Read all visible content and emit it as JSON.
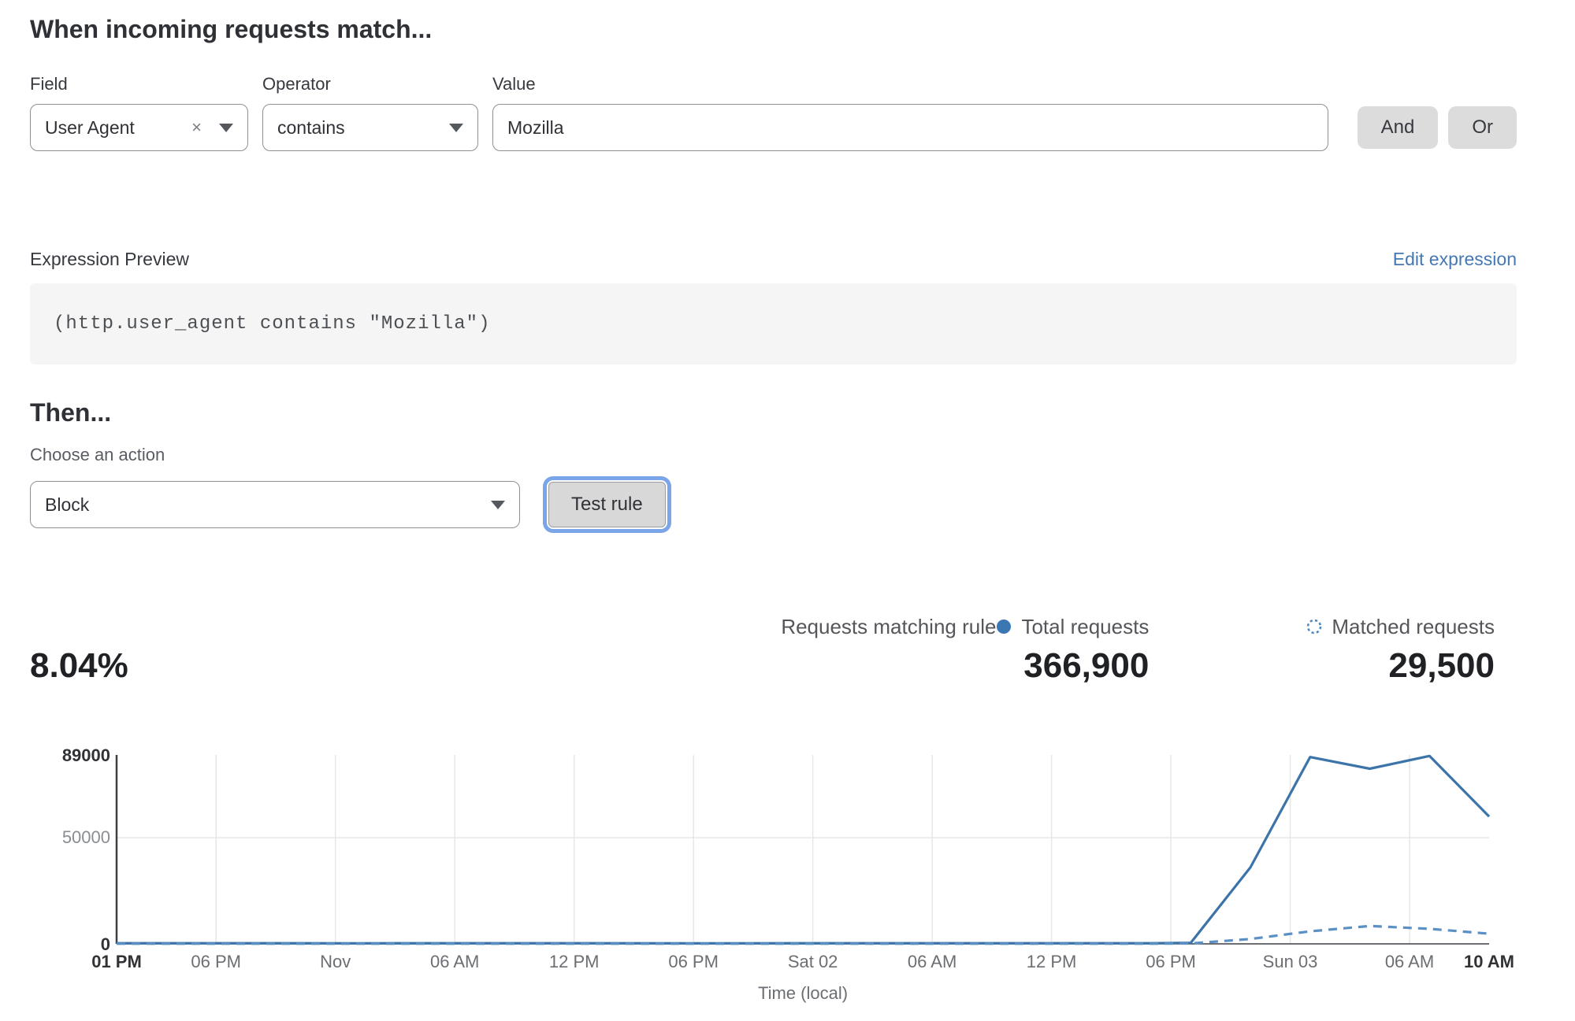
{
  "match_section": {
    "title": "When incoming requests match...",
    "field": {
      "label": "Field",
      "value": "User Agent",
      "clear_icon": "×"
    },
    "operator": {
      "label": "Operator",
      "value": "contains"
    },
    "value": {
      "label": "Value",
      "value": "Mozilla"
    },
    "and_button": "And",
    "or_button": "Or"
  },
  "expression": {
    "label": "Expression Preview",
    "edit_link": "Edit expression",
    "code": "(http.user_agent contains \"Mozilla\")"
  },
  "then_section": {
    "title": "Then...",
    "action_label": "Choose an action",
    "action_value": "Block",
    "test_button": "Test rule"
  },
  "stats": {
    "matching": {
      "label": "Requests matching rule",
      "value": "8.04%"
    },
    "total": {
      "label": "Total requests",
      "value": "366,900"
    },
    "matched": {
      "label": "Matched requests",
      "value": "29,500"
    }
  },
  "colors": {
    "total_line": "#3c74a9",
    "matched_line": "#5b90c4",
    "legend_dot": "#3a77b3",
    "legend_dashed_circle": "#4f8ac2",
    "link_blue": "#4478b4",
    "focus_ring": "#7aa5e9",
    "button_gray": "#dcdcdc",
    "grid": "#e7e7e7",
    "axis": "#3d3f42"
  },
  "chart_data": {
    "type": "line",
    "title": "",
    "xlabel": "Time (local)",
    "ylabel": "",
    "x_unit": "hours from first tick (01 PM Fri) to last tick (10 AM Sun)",
    "xlim": [
      0,
      69
    ],
    "ylim": [
      0,
      89000
    ],
    "grid": "vertical lines at interior 6-hour ticks; horizontal line at 50000",
    "legend_position": "above chart, right side",
    "yticks": [
      {
        "value": 0,
        "label": "0",
        "bold": true
      },
      {
        "value": 50000,
        "label": "50000",
        "bold": false
      },
      {
        "value": 89000,
        "label": "89000",
        "bold": true
      }
    ],
    "xticks": [
      {
        "h": 0,
        "label": "01 PM",
        "bold": true,
        "grid": false
      },
      {
        "h": 5,
        "label": "06 PM",
        "bold": false,
        "grid": true
      },
      {
        "h": 11,
        "label": "Nov",
        "bold": false,
        "grid": true
      },
      {
        "h": 17,
        "label": "06 AM",
        "bold": false,
        "grid": true
      },
      {
        "h": 23,
        "label": "12 PM",
        "bold": false,
        "grid": true
      },
      {
        "h": 29,
        "label": "06 PM",
        "bold": false,
        "grid": true
      },
      {
        "h": 35,
        "label": "Sat 02",
        "bold": false,
        "grid": true
      },
      {
        "h": 41,
        "label": "06 AM",
        "bold": false,
        "grid": true
      },
      {
        "h": 47,
        "label": "12 PM",
        "bold": false,
        "grid": true
      },
      {
        "h": 53,
        "label": "06 PM",
        "bold": false,
        "grid": true
      },
      {
        "h": 59,
        "label": "Sun 03",
        "bold": false,
        "grid": true
      },
      {
        "h": 65,
        "label": "06 AM",
        "bold": false,
        "grid": true
      },
      {
        "h": 69,
        "label": "10 AM",
        "bold": true,
        "grid": false
      }
    ],
    "series": [
      {
        "name": "Total requests",
        "style": "solid",
        "color": "#3c74a9",
        "points": [
          [
            0,
            300
          ],
          [
            6,
            300
          ],
          [
            12,
            250
          ],
          [
            18,
            300
          ],
          [
            24,
            300
          ],
          [
            30,
            250
          ],
          [
            36,
            300
          ],
          [
            42,
            300
          ],
          [
            48,
            300
          ],
          [
            52,
            300
          ],
          [
            54,
            500
          ],
          [
            57,
            36000
          ],
          [
            60,
            88000
          ],
          [
            63,
            82500
          ],
          [
            66,
            88500
          ],
          [
            69,
            60000
          ]
        ]
      },
      {
        "name": "Matched requests",
        "style": "dashed",
        "color": "#5b90c4",
        "points": [
          [
            0,
            80
          ],
          [
            6,
            80
          ],
          [
            12,
            80
          ],
          [
            18,
            80
          ],
          [
            24,
            80
          ],
          [
            30,
            80
          ],
          [
            36,
            80
          ],
          [
            42,
            80
          ],
          [
            48,
            80
          ],
          [
            52,
            80
          ],
          [
            54,
            200
          ],
          [
            57,
            2300
          ],
          [
            60,
            5900
          ],
          [
            63,
            8400
          ],
          [
            66,
            7100
          ],
          [
            69,
            4800
          ]
        ]
      }
    ]
  }
}
